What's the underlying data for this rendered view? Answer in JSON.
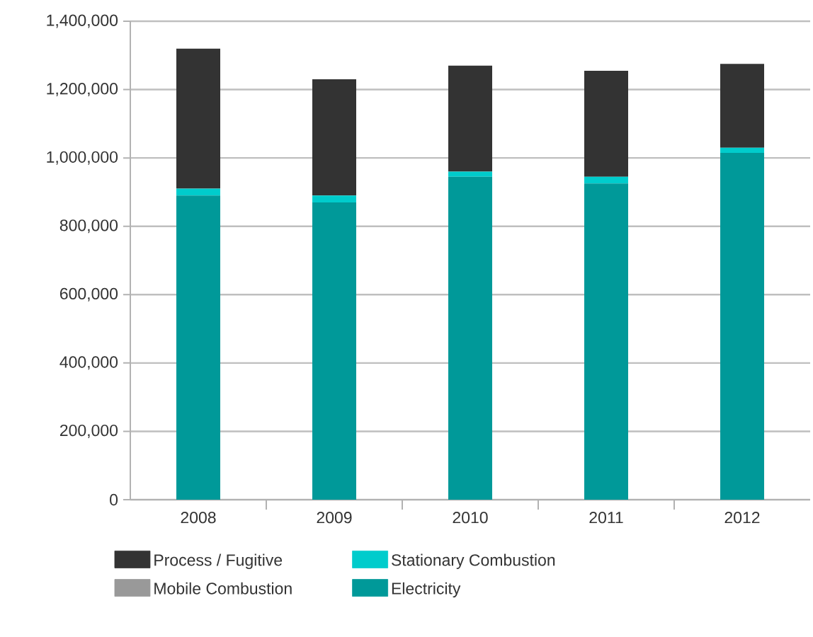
{
  "chart_data": {
    "type": "bar",
    "stacked": true,
    "categories": [
      "2008",
      "2009",
      "2010",
      "2011",
      "2012"
    ],
    "series": [
      {
        "name": "Electricity",
        "color": "#009999",
        "values": [
          890000,
          870000,
          945000,
          925000,
          1015000
        ]
      },
      {
        "name": "Stationary Combustion",
        "color": "#00cccc",
        "values": [
          20000,
          20000,
          15000,
          20000,
          15000
        ]
      },
      {
        "name": "Mobile Combustion",
        "color": "#999999",
        "values": [
          null,
          null,
          null,
          null,
          null
        ]
      },
      {
        "name": "Process / Fugitive",
        "color": "#333333",
        "values": [
          410000,
          340000,
          310000,
          310000,
          245000
        ]
      }
    ],
    "ylim": [
      0,
      1400000
    ],
    "yticks": [
      0,
      {
        "value": 200000,
        "label": "200,000"
      },
      {
        "value": 400000,
        "label": "400,000"
      },
      {
        "value": 600000,
        "label": "600,000"
      },
      {
        "value": 800000,
        "label": "800,000"
      },
      {
        "value": 1000000,
        "label": "1,000,000"
      },
      {
        "value": 1200000,
        "label": "1,200,000"
      },
      {
        "value": 1400000,
        "label": "1,400,000"
      }
    ],
    "grid": "y",
    "legend": "bottom"
  }
}
